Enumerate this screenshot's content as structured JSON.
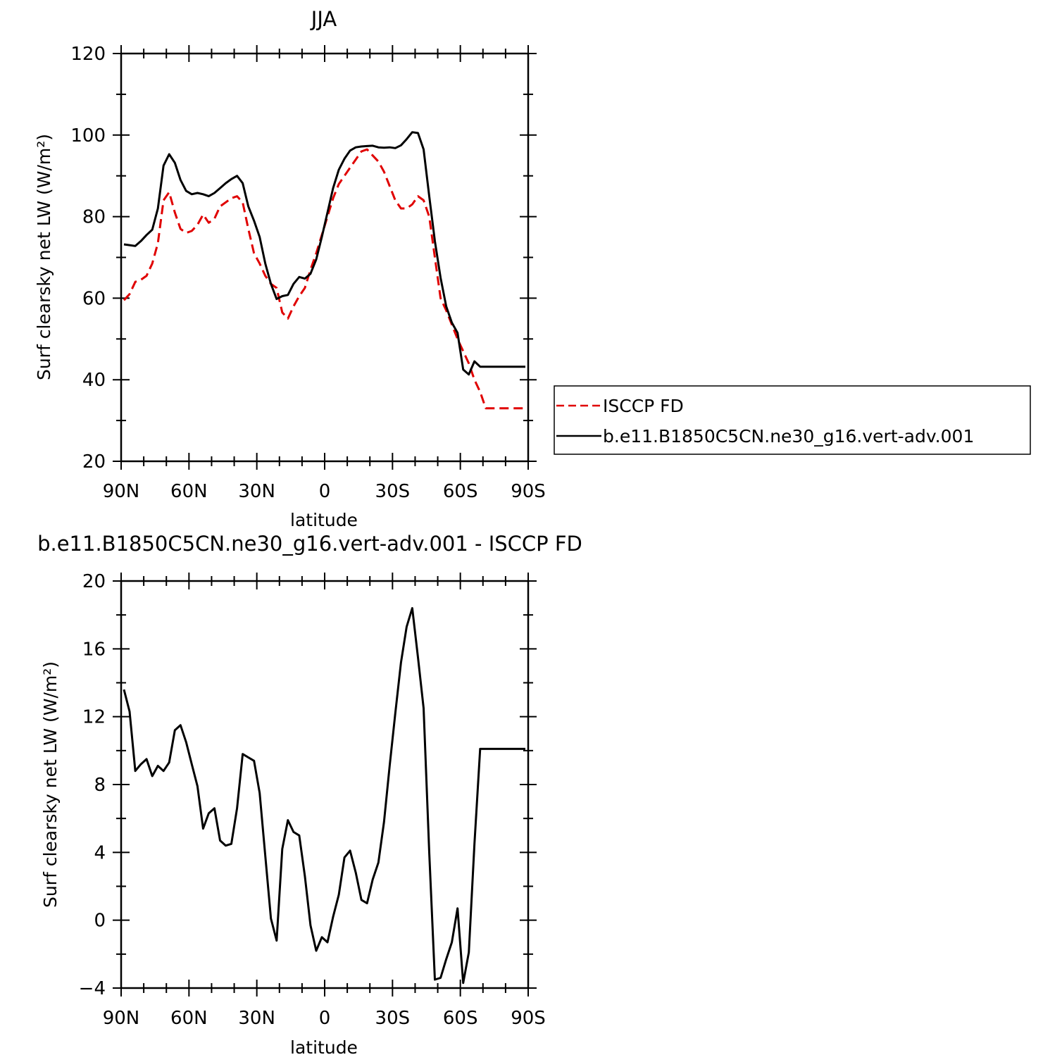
{
  "chart_data": [
    {
      "type": "line",
      "title": "JJA",
      "xlabel": "latitude",
      "ylabel": "Surf clearsky net LW (W/m²)",
      "xlim": [
        90,
        -90
      ],
      "ylim": [
        20,
        120
      ],
      "xtick_values": [
        90,
        60,
        30,
        0,
        -30,
        -60,
        -90
      ],
      "xtick_labels": [
        "90N",
        "60N",
        "30N",
        "0",
        "30S",
        "60S",
        "90S"
      ],
      "ytick_values": [
        20,
        40,
        60,
        80,
        100,
        120
      ],
      "ytick_labels": [
        "20",
        "40",
        "60",
        "80",
        "100",
        "120"
      ],
      "legend_position": "right",
      "series": [
        {
          "name": "ISCCP FD",
          "color": "#e00000",
          "dash": "dashed",
          "x": [
            88.75,
            86.25,
            83.75,
            81.25,
            78.75,
            76.25,
            73.75,
            71.25,
            68.75,
            66.25,
            63.75,
            61.25,
            58.75,
            56.25,
            53.75,
            51.25,
            48.75,
            46.25,
            43.75,
            41.25,
            38.75,
            36.25,
            33.75,
            31.25,
            28.75,
            26.25,
            23.75,
            21.25,
            18.75,
            16.25,
            13.75,
            11.25,
            8.75,
            6.25,
            3.75,
            1.25,
            -1.25,
            -3.75,
            -6.25,
            -8.75,
            -11.25,
            -13.75,
            -16.25,
            -18.75,
            -21.25,
            -23.75,
            -26.25,
            -28.75,
            -31.25,
            -33.75,
            -36.25,
            -38.75,
            -41.25,
            -43.75,
            -46.25,
            -48.75,
            -51.25,
            -53.75,
            -56.25,
            -58.75,
            -61.25,
            -63.75,
            -66.25,
            -68.75,
            -71.25,
            -73.75,
            -76.25,
            -78.75,
            -81.25,
            -83.75,
            -86.25,
            -88.75
          ],
          "y": [
            59.5,
            61,
            64,
            64.5,
            65.5,
            68.5,
            73.5,
            84,
            86,
            81,
            77,
            76,
            76.5,
            78,
            80.5,
            78.5,
            79.5,
            82.5,
            83.5,
            84.5,
            85,
            83.5,
            77,
            71,
            68.5,
            65.5,
            63.5,
            62.5,
            56.5,
            55,
            58,
            60.5,
            62.5,
            67,
            71,
            75.5,
            80,
            84.5,
            88,
            90,
            92,
            94,
            96,
            96.5,
            95,
            93.5,
            91,
            87.5,
            84,
            82,
            82,
            83,
            85,
            84,
            80,
            70,
            60,
            57,
            53.5,
            50,
            47,
            44,
            40,
            37,
            33,
            33,
            33,
            33,
            33,
            33,
            33,
            33
          ]
        },
        {
          "name": "b.e11.B1850C5CN.ne30_g16.vert-adv.001",
          "color": "#000000",
          "dash": "solid",
          "x": [
            88.75,
            86.25,
            83.75,
            81.25,
            78.75,
            76.25,
            73.75,
            71.25,
            68.75,
            66.25,
            63.75,
            61.25,
            58.75,
            56.25,
            53.75,
            51.25,
            48.75,
            46.25,
            43.75,
            41.25,
            38.75,
            36.25,
            33.75,
            31.25,
            28.75,
            26.25,
            23.75,
            21.25,
            18.75,
            16.25,
            13.75,
            11.25,
            8.75,
            6.25,
            3.75,
            1.25,
            -1.25,
            -3.75,
            -6.25,
            -8.75,
            -11.25,
            -13.75,
            -16.25,
            -18.75,
            -21.25,
            -23.75,
            -26.25,
            -28.75,
            -31.25,
            -33.75,
            -36.25,
            -38.75,
            -41.25,
            -43.75,
            -46.25,
            -48.75,
            -51.25,
            -53.75,
            -56.25,
            -58.75,
            -61.25,
            -63.75,
            -66.25,
            -68.75,
            -71.25,
            -73.75,
            -76.25,
            -78.75,
            -81.25,
            -83.75,
            -86.25,
            -88.75
          ],
          "y": [
            73.2,
            73,
            72.8,
            74,
            75.5,
            76.8,
            82,
            92.5,
            95.3,
            93.2,
            89,
            86.3,
            85.5,
            85.8,
            85.5,
            85,
            85.8,
            87,
            88.2,
            89.2,
            90,
            88.2,
            82.5,
            79,
            75,
            68.5,
            63.5,
            59.8,
            60.5,
            60.8,
            63.5,
            65.2,
            64.8,
            66,
            69.5,
            75,
            81,
            87,
            91.5,
            94.2,
            96.2,
            97,
            97.2,
            97.3,
            97.4,
            97,
            96.9,
            97,
            96.8,
            97.5,
            99,
            100.7,
            100.5,
            96.5,
            85,
            74,
            65,
            58,
            54,
            51.5,
            42.5,
            41.3,
            44.5,
            43.2,
            43.2,
            43.2,
            43.2,
            43.2,
            43.2,
            43.2,
            43.2,
            43.2
          ]
        }
      ]
    },
    {
      "type": "line",
      "title": "b.e11.B1850C5CN.ne30_g16.vert-adv.001 - ISCCP FD",
      "xlabel": "latitude",
      "ylabel": "Surf clearsky net LW (W/m²)",
      "xlim": [
        90,
        -90
      ],
      "ylim": [
        -4,
        20
      ],
      "xtick_values": [
        90,
        60,
        30,
        0,
        -30,
        -60,
        -90
      ],
      "xtick_labels": [
        "90N",
        "60N",
        "30N",
        "0",
        "30S",
        "60S",
        "90S"
      ],
      "ytick_values": [
        -4,
        0,
        4,
        8,
        12,
        16,
        20
      ],
      "ytick_labels": [
        "−4",
        "0",
        "4",
        "8",
        "12",
        "16",
        "20"
      ],
      "series": [
        {
          "color": "#000000",
          "dash": "solid",
          "x": [
            88.75,
            86.25,
            83.75,
            81.25,
            78.75,
            76.25,
            73.75,
            71.25,
            68.75,
            66.25,
            63.75,
            61.25,
            58.75,
            56.25,
            53.75,
            51.25,
            48.75,
            46.25,
            43.75,
            41.25,
            38.75,
            36.25,
            33.75,
            31.25,
            28.75,
            26.25,
            23.75,
            21.25,
            18.75,
            16.25,
            13.75,
            11.25,
            8.75,
            6.25,
            3.75,
            1.25,
            -1.25,
            -3.75,
            -6.25,
            -8.75,
            -11.25,
            -13.75,
            -16.25,
            -18.75,
            -21.25,
            -23.75,
            -26.25,
            -28.75,
            -31.25,
            -33.75,
            -36.25,
            -38.75,
            -41.25,
            -43.75,
            -46.25,
            -48.75,
            -51.25,
            -53.75,
            -56.25,
            -58.75,
            -61.25,
            -63.75,
            -66.25,
            -68.75,
            -71.25,
            -73.75,
            -76.25,
            -78.75,
            -81.25,
            -83.75,
            -86.25,
            -88.75
          ],
          "y": [
            13.6,
            12.3,
            8.8,
            9.2,
            9.5,
            8.5,
            9.1,
            8.8,
            9.3,
            11.2,
            11.5,
            10.5,
            9.2,
            7.9,
            5.4,
            6.3,
            6.6,
            4.7,
            4.4,
            4.5,
            6.6,
            9.8,
            9.6,
            9.4,
            7.5,
            3.8,
            0.1,
            -1.2,
            4.2,
            5.9,
            5.2,
            5.0,
            2.6,
            -0.3,
            -1.8,
            -1.0,
            -1.3,
            0.2,
            1.5,
            3.7,
            4.1,
            2.8,
            1.2,
            1.0,
            2.4,
            3.4,
            5.8,
            9.1,
            12.2,
            15.2,
            17.3,
            18.4,
            15.5,
            12.5,
            4.0,
            -3.5,
            -3.4,
            -2.3,
            -1.3,
            0.7,
            -3.7,
            -1.9,
            4.5,
            10.1,
            10.1,
            10.1,
            10.1,
            10.1,
            10.1,
            10.1,
            10.1,
            10.1
          ]
        }
      ]
    }
  ]
}
